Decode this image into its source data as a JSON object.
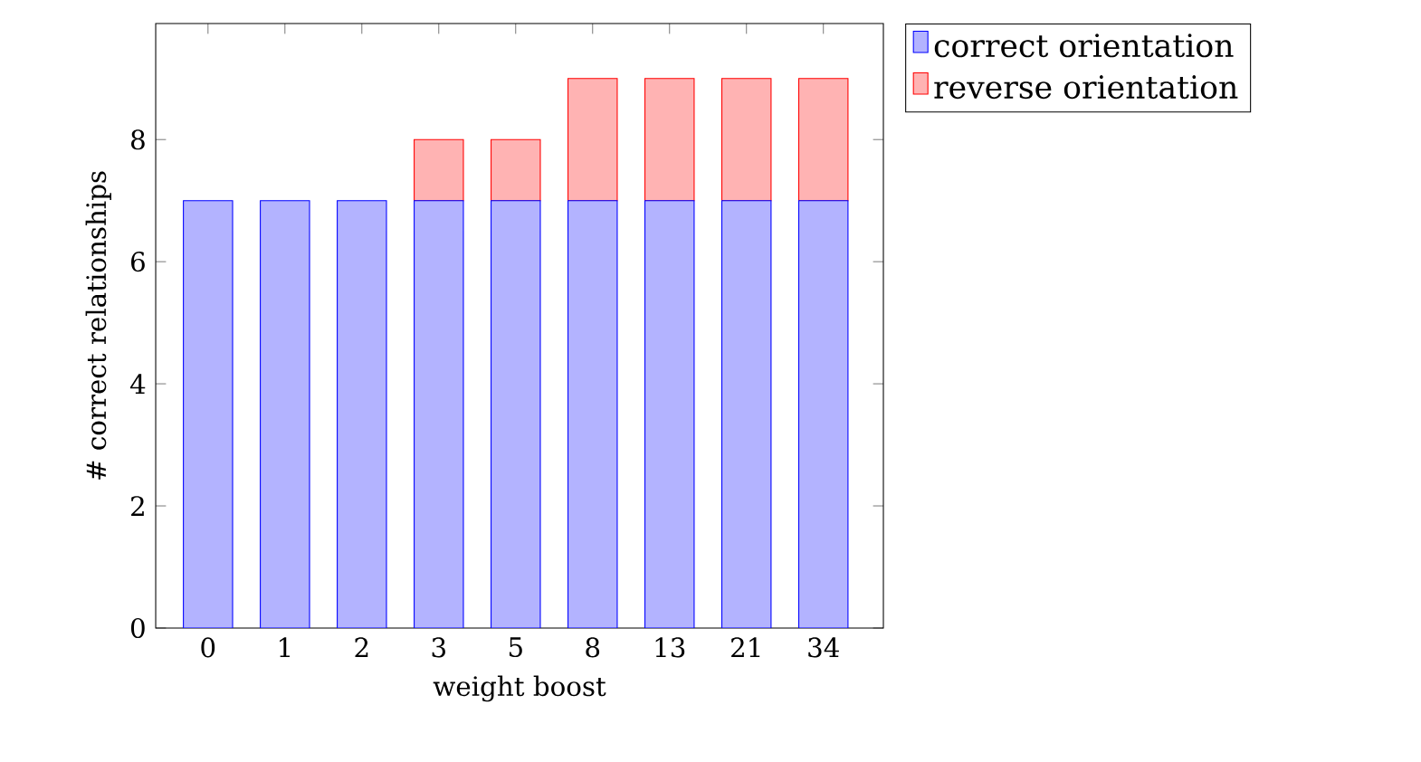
{
  "chart_data": {
    "type": "bar",
    "stacked": true,
    "xlabel": "weight boost",
    "ylabel": "# correct relationships",
    "categories": [
      "0",
      "1",
      "2",
      "3",
      "5",
      "8",
      "13",
      "21",
      "34"
    ],
    "series": [
      {
        "name": "correct orientation",
        "color": "#b3b3ff",
        "values": [
          7,
          7,
          7,
          7,
          7,
          7,
          7,
          7,
          7
        ]
      },
      {
        "name": "reverse orientation",
        "color": "#ffb3b3",
        "values": [
          0,
          0,
          0,
          1,
          1,
          2,
          2,
          2,
          2
        ]
      }
    ],
    "ylim": [
      0,
      9.9
    ],
    "yticks": [
      0,
      2,
      4,
      6,
      8
    ],
    "legend": "top right"
  }
}
